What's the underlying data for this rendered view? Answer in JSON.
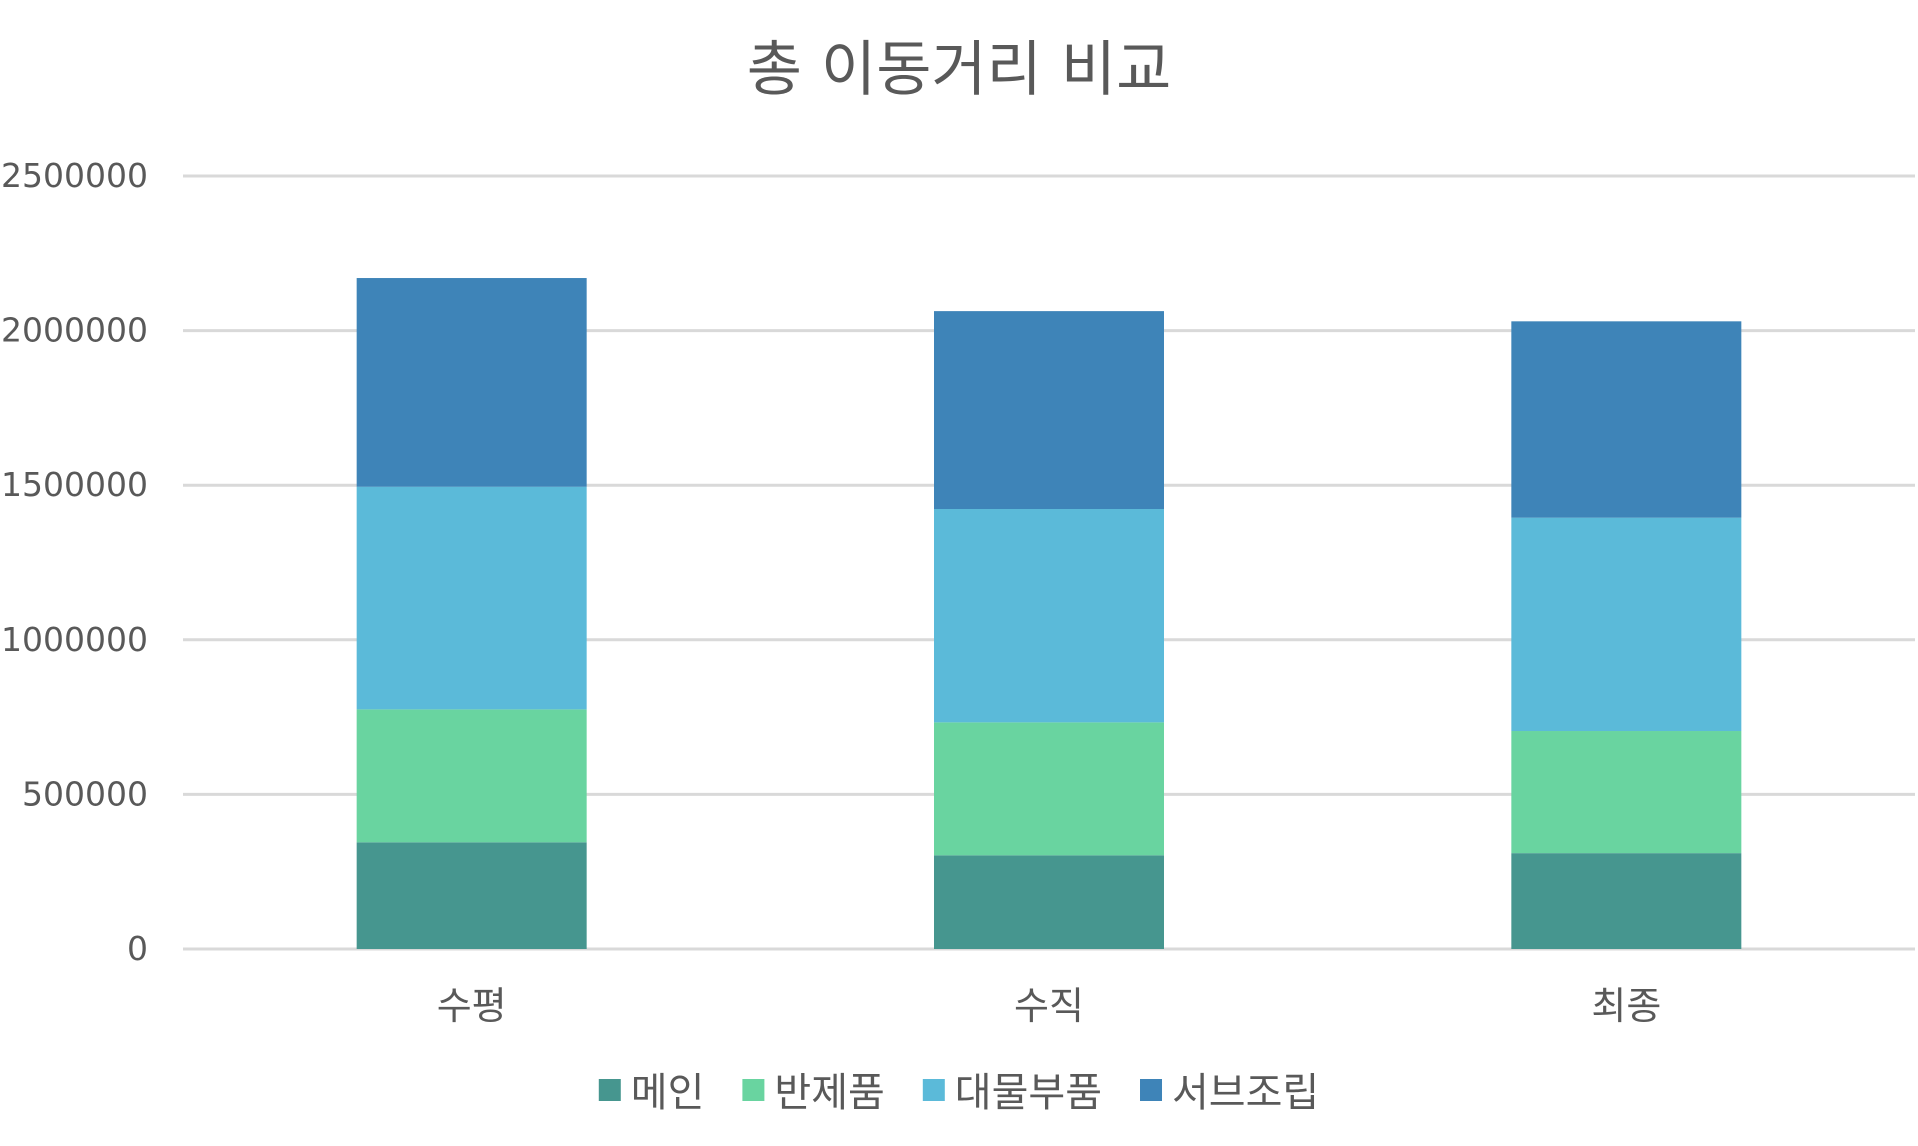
{
  "chart_data": {
    "type": "bar",
    "stacked": true,
    "title": "총 이동거리 비교",
    "xlabel": "",
    "ylabel": "",
    "categories": [
      "수평",
      "수직",
      "최종"
    ],
    "series": [
      {
        "name": "메인",
        "color": "#46968f",
        "values": [
          345000,
          303000,
          310000
        ]
      },
      {
        "name": "반제품",
        "color": "#69d4a0",
        "values": [
          430000,
          430000,
          395000
        ]
      },
      {
        "name": "대물부품",
        "color": "#5bbad9",
        "values": [
          720000,
          690000,
          690000
        ]
      },
      {
        "name": "서브조립",
        "color": "#3e84b8",
        "values": [
          675000,
          640000,
          635000
        ]
      }
    ],
    "yticks": [
      "0",
      "500000",
      "1000000",
      "1500000",
      "2000000",
      "2500000"
    ],
    "ylim": [
      0,
      2500000
    ],
    "grid": true,
    "legend_position": "bottom"
  }
}
